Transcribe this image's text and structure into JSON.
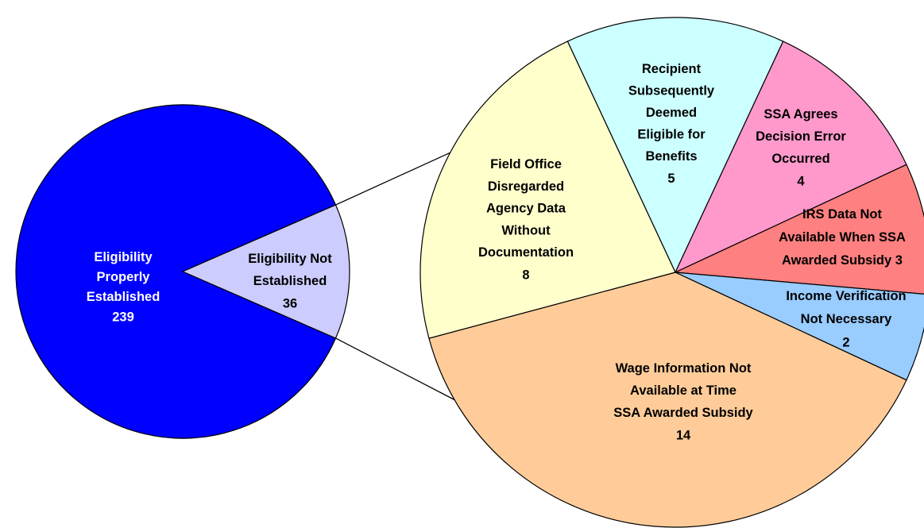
{
  "chart_data": {
    "type": "pie-of-pie",
    "pies": [
      {
        "labels": [
          [
            "Eligibility",
            "Properly",
            "Established"
          ],
          [
            "Eligibility Not",
            "Established"
          ]
        ],
        "values": [
          239,
          36
        ],
        "colors": [
          "#0000ff",
          "#ccccff"
        ]
      },
      {
        "labels": [
          [
            "Recipient",
            "Subsequently",
            "Deemed",
            "Eligible for",
            "Benefits"
          ],
          [
            "SSA Agrees",
            "Decision Error",
            "Occurred"
          ],
          [
            "IRS Data Not",
            "Available When SSA",
            "Awarded Subsidy"
          ],
          [
            "Income Verification",
            "Not Necessary"
          ],
          [
            "Wage Information Not",
            "Available at Time",
            "SSA Awarded Subsidy"
          ],
          [
            "Field Office",
            "Disregarded",
            "Agency Data",
            "Without",
            "Documentation"
          ]
        ],
        "values": [
          5,
          4,
          3,
          2,
          14,
          8
        ],
        "colors": [
          "#ccffff",
          "#ff99cc",
          "#ff8080",
          "#99ccff",
          "#ffcc99",
          "#ffffcc"
        ]
      }
    ]
  }
}
